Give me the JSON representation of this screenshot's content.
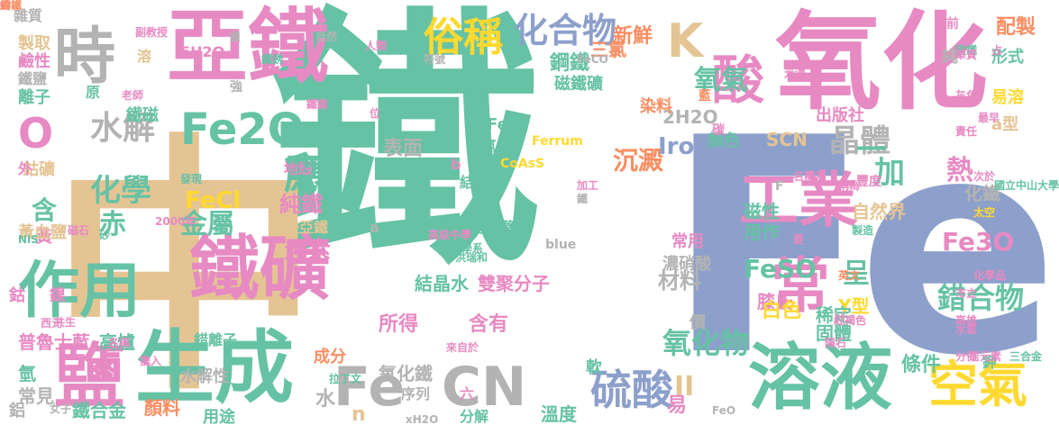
{
  "palette": {
    "teal": "#66c2a5",
    "tan": "#e5c494",
    "periwinkle": "#8da0cb",
    "pink": "#e78ac3",
    "orange": "#fc8d62",
    "lime": "#a6d854",
    "yellow": "#ffd92f",
    "gray": "#b3b3b3"
  },
  "words": [
    {
      "text": "鐵",
      "color": "teal"
    },
    {
      "text": "Fe",
      "color": "periwinkle"
    },
    {
      "text": "中",
      "color": "tan"
    },
    {
      "text": "氧化",
      "color": "pink"
    },
    {
      "text": "亞鐵",
      "color": "pink"
    },
    {
      "text": "生成",
      "color": "teal"
    },
    {
      "text": "溶液",
      "color": "teal"
    },
    {
      "text": "時",
      "color": "gray"
    },
    {
      "text": "鐵礦",
      "color": "pink"
    },
    {
      "text": "作用",
      "color": "teal"
    },
    {
      "text": "工業",
      "color": "pink"
    },
    {
      "text": "Fe",
      "color": "gray"
    },
    {
      "text": "CN",
      "color": "gray"
    },
    {
      "text": "鹽",
      "color": "pink"
    },
    {
      "text": "空氣",
      "color": "yellow"
    },
    {
      "text": "酸",
      "color": "pink"
    },
    {
      "text": "Fe2O",
      "color": "teal"
    },
    {
      "text": "K",
      "color": "tan"
    },
    {
      "text": "O",
      "color": "pink"
    },
    {
      "text": "常",
      "color": "pink"
    },
    {
      "text": "應",
      "color": "teal"
    },
    {
      "text": "硫酸",
      "color": "periwinkle"
    },
    {
      "text": "俗稱",
      "color": "yellow"
    },
    {
      "text": "化合物",
      "color": "periwinkle"
    },
    {
      "text": "水解",
      "color": "gray"
    },
    {
      "text": "晶體",
      "color": "gray"
    },
    {
      "text": "錯合物",
      "color": "teal"
    },
    {
      "text": "氧化物",
      "color": "teal"
    },
    {
      "text": "氧氣",
      "color": "teal"
    },
    {
      "text": "沉澱",
      "color": "orange"
    },
    {
      "text": "化學",
      "color": "teal"
    },
    {
      "text": "赤",
      "color": "teal"
    },
    {
      "text": "金屬",
      "color": "teal"
    },
    {
      "text": "FeCl",
      "color": "yellow"
    },
    {
      "text": "元素",
      "color": "pink"
    },
    {
      "text": "純鐵",
      "color": "pink"
    },
    {
      "text": "FeSO",
      "color": "teal"
    },
    {
      "text": "Fe3O",
      "color": "pink"
    },
    {
      "text": "加",
      "color": "teal"
    },
    {
      "text": "熱",
      "color": "pink"
    },
    {
      "text": "一",
      "color": "teal"
    },
    {
      "text": "II",
      "color": "tan"
    },
    {
      "text": "Ironc",
      "color": "periwinkle"
    },
    {
      "text": "表面",
      "color": "gray"
    },
    {
      "text": "新鮮",
      "color": "orange"
    },
    {
      "text": "三氯",
      "color": "orange"
    },
    {
      "text": "鋼鐵",
      "color": "teal"
    },
    {
      "text": "配製",
      "color": "orange"
    },
    {
      "text": "材料",
      "color": "gray"
    },
    {
      "text": "呈",
      "color": "teal"
    },
    {
      "text": "含",
      "color": "teal"
    },
    {
      "text": "磁鐵礦",
      "color": "teal"
    },
    {
      "text": "2H2O",
      "color": "gray"
    },
    {
      "text": "染料",
      "color": "orange"
    },
    {
      "text": "Fe3",
      "color": "teal"
    },
    {
      "text": "SCN",
      "color": "tan"
    },
    {
      "text": "顏色",
      "color": "teal"
    },
    {
      "text": "易溶",
      "color": "yellow"
    },
    {
      "text": "a型",
      "color": "tan"
    },
    {
      "text": "出版社",
      "color": "pink"
    },
    {
      "text": "形式",
      "color": "teal"
    },
    {
      "text": "純",
      "color": "gray"
    },
    {
      "text": "結構",
      "color": "teal"
    },
    {
      "text": "磁性",
      "color": "teal"
    },
    {
      "text": "用作",
      "color": "teal"
    },
    {
      "text": "自然界",
      "color": "tan"
    },
    {
      "text": "化鐵",
      "color": "gray"
    },
    {
      "text": "常用",
      "color": "pink"
    },
    {
      "text": "濃硝酸",
      "color": "gray"
    },
    {
      "text": "膝氏",
      "color": "pink"
    },
    {
      "text": "白色",
      "color": "yellow"
    },
    {
      "text": "Y型",
      "color": "yellow"
    },
    {
      "text": "稀定",
      "color": "teal"
    },
    {
      "text": "固體",
      "color": "teal"
    },
    {
      "text": "H",
      "color": "gray"
    },
    {
      "text": "所得",
      "color": "pink"
    },
    {
      "text": "含有",
      "color": "pink"
    },
    {
      "text": "雙聚分子",
      "color": "pink"
    },
    {
      "text": "結晶水",
      "color": "teal"
    },
    {
      "text": "分解",
      "color": "teal"
    },
    {
      "text": "溫度",
      "color": "teal"
    },
    {
      "text": "軟",
      "color": "teal"
    },
    {
      "text": "易",
      "color": "pink"
    },
    {
      "text": "價",
      "color": "gray"
    },
    {
      "text": "條件",
      "color": "teal"
    },
    {
      "text": "氧化鐵",
      "color": "gray"
    },
    {
      "text": "水",
      "color": "gray"
    },
    {
      "text": "n",
      "color": "tan"
    },
    {
      "text": "成分",
      "color": "orange"
    },
    {
      "text": "水解性",
      "color": "gray"
    },
    {
      "text": "用途",
      "color": "teal"
    },
    {
      "text": "顏料",
      "color": "orange"
    },
    {
      "text": "鐵合金",
      "color": "teal"
    },
    {
      "text": "普魯士藍",
      "color": "pink"
    },
    {
      "text": "高爐",
      "color": "teal"
    },
    {
      "text": "錯離子",
      "color": "teal"
    },
    {
      "text": "常見",
      "color": "gray"
    },
    {
      "text": "鋁",
      "color": "gray"
    },
    {
      "text": "氫",
      "color": "teal"
    },
    {
      "text": "鈷",
      "color": "pink"
    },
    {
      "text": "鎳",
      "color": "pink"
    },
    {
      "text": "黃",
      "color": "pink"
    },
    {
      "text": "黃血鹽",
      "color": "tan"
    },
    {
      "text": "鈷礦",
      "color": "tan"
    },
    {
      "text": "外",
      "color": "pink"
    },
    {
      "text": "離子",
      "color": "teal"
    },
    {
      "text": "鹼性",
      "color": "pink"
    },
    {
      "text": "製取",
      "color": "tan"
    },
    {
      "text": "雜質",
      "color": "gray"
    },
    {
      "text": "鐵鹽",
      "color": "gray"
    },
    {
      "text": "鐵磁",
      "color": "teal"
    },
    {
      "text": "原",
      "color": "teal"
    },
    {
      "text": "溶",
      "color": "tan"
    },
    {
      "text": "6H2O",
      "color": "pink"
    },
    {
      "text": "強",
      "color": "gray"
    },
    {
      "text": "地殼",
      "color": "pink"
    },
    {
      "text": "硫酸亞鐵",
      "color": "tan"
    },
    {
      "text": "赤血鹽",
      "color": "teal"
    },
    {
      "text": "blue",
      "color": "gray"
    },
    {
      "text": "氯氣",
      "color": "teal"
    },
    {
      "text": "a",
      "color": "gray"
    },
    {
      "text": "b",
      "color": "pink"
    },
    {
      "text": "CoAsS",
      "color": "yellow"
    },
    {
      "text": "Ferrum",
      "color": "yellow"
    },
    {
      "text": "FeCO",
      "color": "gray"
    },
    {
      "text": "碳",
      "color": "pink"
    },
    {
      "text": "F",
      "color": "gray"
    },
    {
      "text": "鉀",
      "color": "teal"
    },
    {
      "text": "六",
      "color": "pink"
    },
    {
      "text": "序列",
      "color": "gray"
    },
    {
      "text": "xH2O",
      "color": "gray"
    },
    {
      "text": "FeO",
      "color": "gray"
    },
    {
      "text": "英文",
      "color": "orange"
    },
    {
      "text": "居元素",
      "color": "pink"
    },
    {
      "text": "三合金",
      "color": "teal"
    },
    {
      "text": "國立中山大學",
      "color": "teal"
    },
    {
      "text": "發現",
      "color": "teal"
    },
    {
      "text": "2000年",
      "color": "pink"
    },
    {
      "text": "張祖幸",
      "color": "teal"
    },
    {
      "text": "洪瑞和",
      "color": "teal"
    },
    {
      "text": "高級中學",
      "color": "pink"
    },
    {
      "text": "化學系",
      "color": "teal"
    },
    {
      "text": "分布",
      "color": "teal"
    },
    {
      "text": "來自於",
      "color": "pink"
    },
    {
      "text": "拉丁文",
      "color": "teal"
    },
    {
      "text": "老師",
      "color": "pink"
    },
    {
      "text": "共生",
      "color": "pink"
    },
    {
      "text": "西元",
      "color": "pink"
    },
    {
      "text": "名稱",
      "color": "pink"
    },
    {
      "text": "女子",
      "color": "gray"
    },
    {
      "text": "人類",
      "color": "pink"
    },
    {
      "text": "符號",
      "color": "gray"
    },
    {
      "text": "副教授",
      "color": "pink"
    },
    {
      "text": "鎳",
      "color": "gray"
    },
    {
      "text": "鐵銹",
      "color": "teal"
    },
    {
      "text": "藍",
      "color": "orange"
    },
    {
      "text": "光澤",
      "color": "pink"
    },
    {
      "text": "水氣",
      "color": "pink"
    },
    {
      "text": "灰色",
      "color": "pink"
    },
    {
      "text": "隕鐵",
      "color": "teal"
    },
    {
      "text": "單質",
      "color": "pink"
    },
    {
      "text": "最早",
      "color": "pink"
    },
    {
      "text": "責任",
      "color": "pink"
    },
    {
      "text": "市立",
      "color": "pink"
    },
    {
      "text": "高雄",
      "color": "pink"
    },
    {
      "text": "隕石",
      "color": "pink"
    },
    {
      "text": "紅褐色",
      "color": "pink"
    },
    {
      "text": "分佈",
      "color": "pink"
    },
    {
      "text": "次於",
      "color": "pink"
    },
    {
      "text": "豐度",
      "color": "pink"
    },
    {
      "text": "製造",
      "color": "teal"
    },
    {
      "text": "太空",
      "color": "yellow"
    },
    {
      "text": "名稱為",
      "color": "pink"
    },
    {
      "text": "化學品",
      "color": "pink"
    },
    {
      "text": "加工",
      "color": "pink"
    },
    {
      "text": "鐵",
      "color": "gray"
    },
    {
      "text": "稱為",
      "color": "pink"
    },
    {
      "text": "攙入",
      "color": "pink"
    },
    {
      "text": "磁石",
      "color": "pink"
    },
    {
      "text": "NiS",
      "color": "teal"
    },
    {
      "text": "砂",
      "color": "teal"
    },
    {
      "text": "自然",
      "color": "gray"
    },
    {
      "text": "鐵鎳",
      "color": "pink"
    },
    {
      "text": "位",
      "color": "pink"
    },
    {
      "text": "菱",
      "color": "pink"
    },
    {
      "text": "占",
      "color": "pink"
    },
    {
      "text": "前",
      "color": "pink"
    },
    {
      "text": "約",
      "color": "pink"
    },
    {
      "text": "鑄鐵",
      "color": "orange"
    }
  ]
}
